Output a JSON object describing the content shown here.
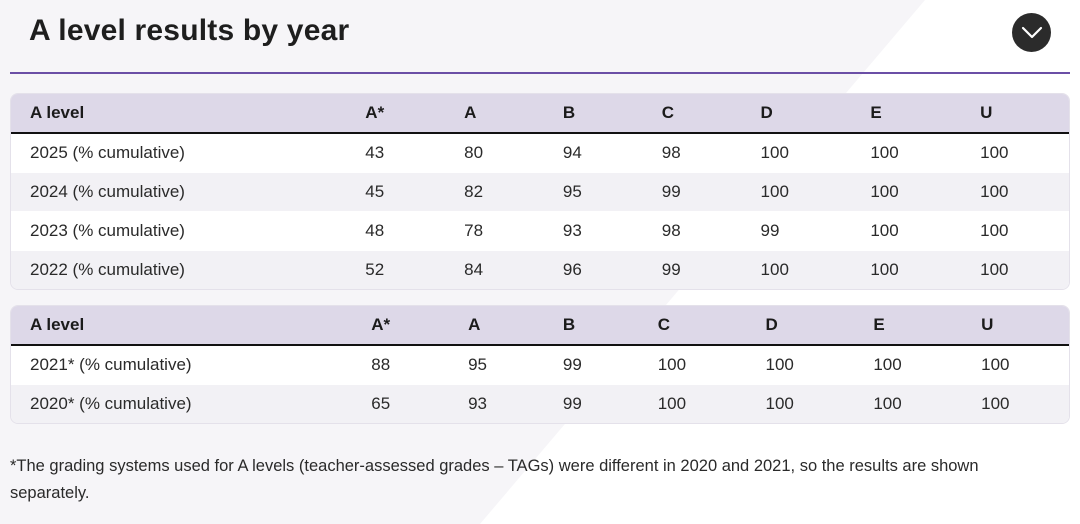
{
  "header": {
    "title": "A level results by year"
  },
  "toggle": {
    "icon": "chevron-down-icon"
  },
  "colors": {
    "accent": "#6b4fa6",
    "header_row": "#ddd8e8",
    "toggle_bg": "#2b2b2b"
  },
  "tables": [
    {
      "columns": [
        "A level",
        "A*",
        "A",
        "B",
        "C",
        "D",
        "E",
        "U"
      ],
      "rows": [
        [
          "2025 (% cumulative)",
          "43",
          "80",
          "94",
          "98",
          "100",
          "100",
          "100"
        ],
        [
          "2024 (% cumulative)",
          "45",
          "82",
          "95",
          "99",
          "100",
          "100",
          "100"
        ],
        [
          "2023 (% cumulative)",
          "48",
          "78",
          "93",
          "98",
          "99",
          "100",
          "100"
        ],
        [
          "2022 (% cumulative)",
          "52",
          "84",
          "96",
          "99",
          "100",
          "100",
          "100"
        ]
      ]
    },
    {
      "columns": [
        "A level",
        "A*",
        "A",
        "B",
        "C",
        "D",
        "E",
        "U"
      ],
      "rows": [
        [
          "2021* (% cumulative)",
          "88",
          "95",
          "99",
          "100",
          "100",
          "100",
          "100"
        ],
        [
          "2020* (% cumulative)",
          "65",
          "93",
          "99",
          "100",
          "100",
          "100",
          "100"
        ]
      ]
    }
  ],
  "footnote": "*The grading systems used for A levels (teacher-assessed grades – TAGs) were different in 2020 and 2021, so the results are shown separately."
}
